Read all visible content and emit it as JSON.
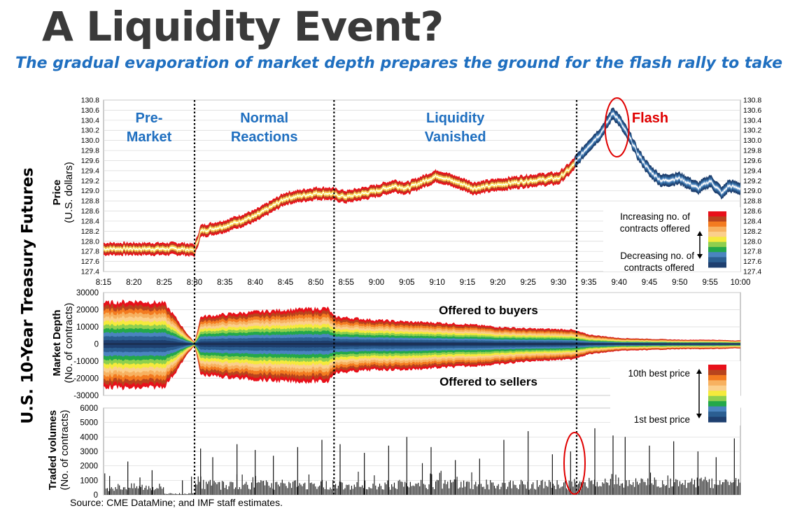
{
  "header": {
    "title": "A Liquidity Event?",
    "subtitle": "The gradual evaporation of market depth prepares the ground for the flash rally to take off."
  },
  "side_title": "U.S. 10-Year Treasury Futures",
  "source": "Source: CME DataMine; and IMF staff estimates.",
  "colors": {
    "phase_label": "#1f6fc0",
    "flash_label": "#e00000",
    "depth_scale": [
      "#e8101a",
      "#b8441d",
      "#f37b20",
      "#f7b160",
      "#fbcf8c",
      "#f5ea3c",
      "#8fcf4e",
      "#23a84a",
      "#4a84bf",
      "#2b5e91",
      "#1e3f6f"
    ]
  },
  "chart_data": [
    {
      "type": "line",
      "panel": "price",
      "ylabel": "Price",
      "yunit": "(U.S. dollars)",
      "ylim": [
        127.4,
        130.8
      ],
      "yticks": [
        "127.4",
        "127.6",
        "127.8",
        "128.0",
        "128.2",
        "128.4",
        "128.6",
        "128.8",
        "129.0",
        "129.2",
        "129.4",
        "129.6",
        "129.8",
        "130.0",
        "130.2",
        "130.4",
        "130.6",
        "130.8"
      ],
      "xticks": [
        "8:15",
        "8:20",
        "8:25",
        "8:30",
        "8:35",
        "8:40",
        "8:45",
        "8:50",
        "8:55",
        "9:00",
        "9:05",
        "9:10",
        "9:15",
        "9:20",
        "9:25",
        "9:30",
        "9:35",
        "9:40",
        "9:45",
        "9:50",
        "9:55",
        "10:00"
      ],
      "xrange_minutes": [
        0,
        105
      ],
      "x_minutes": [
        0,
        13,
        15,
        16,
        20,
        25,
        30,
        35,
        37,
        40,
        45,
        48,
        50,
        55,
        60,
        61,
        65,
        70,
        75,
        77,
        80,
        82,
        84,
        85,
        87,
        88,
        90,
        92,
        95,
        98,
        100,
        102,
        103,
        105
      ],
      "price": [
        127.85,
        127.85,
        127.82,
        128.2,
        128.3,
        128.5,
        128.85,
        128.95,
        128.95,
        128.88,
        129.0,
        129.1,
        129.05,
        129.3,
        129.1,
        129.05,
        129.12,
        129.2,
        129.25,
        129.45,
        129.9,
        130.15,
        130.55,
        130.4,
        130.0,
        129.75,
        129.4,
        129.2,
        129.25,
        129.05,
        129.2,
        128.95,
        129.1,
        129.05
      ],
      "phases": [
        {
          "label_lines": [
            "Pre-",
            "Market"
          ],
          "start": "8:15",
          "end": "8:30"
        },
        {
          "label_lines": [
            "Normal",
            "Reactions"
          ],
          "start": "8:30",
          "end": "8:53"
        },
        {
          "label_lines": [
            "Liquidity",
            "Vanished"
          ],
          "start": "8:53",
          "end": "9:33"
        },
        {
          "label_lines": [
            "Flash"
          ],
          "start": "9:33",
          "end": "10:00"
        }
      ],
      "phase_boundaries": [
        "8:30",
        "8:53",
        "9:33"
      ],
      "legend": {
        "top": "Increasing no. of contracts offered",
        "bottom": "Decreasing no. of contracts offered"
      },
      "highlight": "9:40"
    },
    {
      "type": "area",
      "panel": "market_depth",
      "ylabel": "Market Depth",
      "yunit": "(No. of contracts)",
      "ylim": [
        -30000,
        30000
      ],
      "yticks": [
        "30000",
        "20000",
        "10000",
        "0",
        "-10000",
        "-20000",
        "-30000"
      ],
      "x_minutes": [
        0,
        5,
        10,
        12,
        14,
        15,
        16,
        22,
        30,
        37,
        38,
        45,
        50,
        55,
        60,
        65,
        70,
        77,
        80,
        85,
        90,
        95,
        100,
        105
      ],
      "offered_to_buyers": [
        24000,
        25000,
        24000,
        15000,
        5000,
        1000,
        16000,
        18000,
        20000,
        21000,
        16000,
        14000,
        13000,
        12500,
        11500,
        10000,
        9000,
        8500,
        5500,
        3500,
        3000,
        2500,
        2500,
        2000
      ],
      "offered_to_sellers": [
        -25000,
        -26000,
        -25000,
        -16000,
        -5000,
        -1000,
        -18000,
        -20000,
        -22000,
        -22000,
        -17000,
        -15000,
        -15000,
        -14000,
        -13000,
        -12000,
        -10000,
        -9000,
        -6000,
        -4000,
        -3500,
        -3000,
        -3000,
        -2500
      ],
      "annotations": [
        "Offered to buyers",
        "Offered to sellers"
      ],
      "legend": {
        "top": "10th best price",
        "bottom": "1st best price"
      }
    },
    {
      "type": "bar",
      "panel": "traded_volumes",
      "ylabel": "Traded volumes",
      "yunit": "(No. of contracts)",
      "ylim": [
        0,
        6000
      ],
      "yticks": [
        "6000",
        "5000",
        "4000",
        "3000",
        "2000",
        "1000",
        "0"
      ],
      "x_minutes": [
        1,
        4,
        6,
        8,
        13,
        16,
        18,
        22,
        25,
        28,
        32,
        36,
        39,
        43,
        47,
        50,
        54,
        58,
        62,
        66,
        70,
        74,
        77,
        81,
        84,
        86,
        90,
        94,
        98,
        101,
        104
      ],
      "volume": [
        1300,
        2300,
        1200,
        1700,
        1000,
        3200,
        2600,
        3500,
        3100,
        2700,
        3300,
        3800,
        3500,
        2900,
        3400,
        4000,
        3300,
        2400,
        2500,
        3800,
        4400,
        2800,
        3000,
        4600,
        4100,
        4000,
        3400,
        3700,
        3000,
        2600,
        3900
      ],
      "highlight": "9:33"
    }
  ]
}
